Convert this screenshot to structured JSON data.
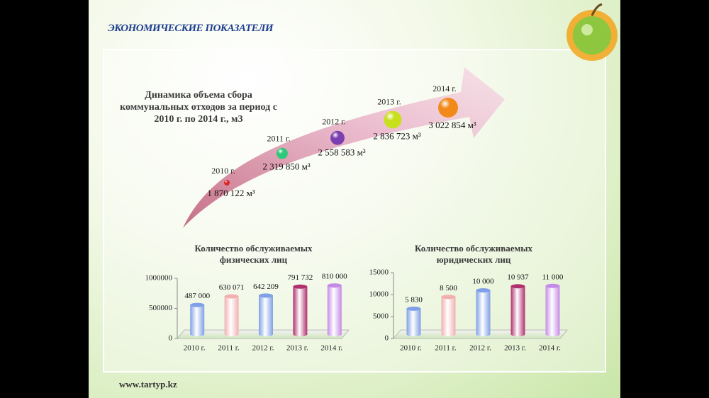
{
  "header": {
    "title": "ЭКОНОМИЧЕСКИЕ ПОКАЗАТЕЛИ"
  },
  "footer": {
    "website": "www.tartyp.kz"
  },
  "chart_data": [
    {
      "type": "timeline",
      "title": "Динамика объема сбора коммунальных отходов за период с 2010 г. по 2014 г., м3",
      "categories": [
        "2010 г.",
        "2011 г.",
        "2012 г.",
        "2013 г.",
        "2014 г."
      ],
      "values": [
        1870122,
        2319850,
        2558583,
        2836723,
        3022854
      ],
      "value_labels": [
        "1 870 122 м³",
        "2 319 850 м³",
        "2 558 583 м³",
        "2 836 723 м³",
        "3 022 854 м³"
      ],
      "colors": [
        "#d9262b",
        "#2ec97a",
        "#7a3fb0",
        "#c8e01c",
        "#f28a1a"
      ]
    },
    {
      "type": "bar",
      "title": "Количество обслуживаемых физических лиц",
      "categories": [
        "2010 г.",
        "2011 г.",
        "2012 г.",
        "2013 г.",
        "2014 г."
      ],
      "values": [
        487000,
        630071,
        642209,
        791732,
        810000
      ],
      "value_labels": [
        "487 000",
        "630 071",
        "642 209",
        "791 732",
        "810 000"
      ],
      "colors": [
        "#7f9fe6",
        "#f0b0b0",
        "#7f9fe6",
        "#b0306e",
        "#c48ae6"
      ],
      "ylim": [
        0,
        1000000
      ],
      "yticks": [
        0,
        500000,
        1000000
      ]
    },
    {
      "type": "bar",
      "title": "Количество обслуживаемых юридических лиц",
      "categories": [
        "2010 г.",
        "2011 г.",
        "2012 г.",
        "2013 г.",
        "2014 г."
      ],
      "values": [
        5830,
        8500,
        10000,
        10937,
        11000
      ],
      "value_labels": [
        "5 830",
        "8 500",
        "10 000",
        "10 937",
        "11 000"
      ],
      "colors": [
        "#7f9fe6",
        "#f0b0b0",
        "#7f9fe6",
        "#b0306e",
        "#c48ae6"
      ],
      "ylim": [
        0,
        15000
      ],
      "yticks": [
        0,
        5000,
        10000,
        15000
      ]
    }
  ]
}
